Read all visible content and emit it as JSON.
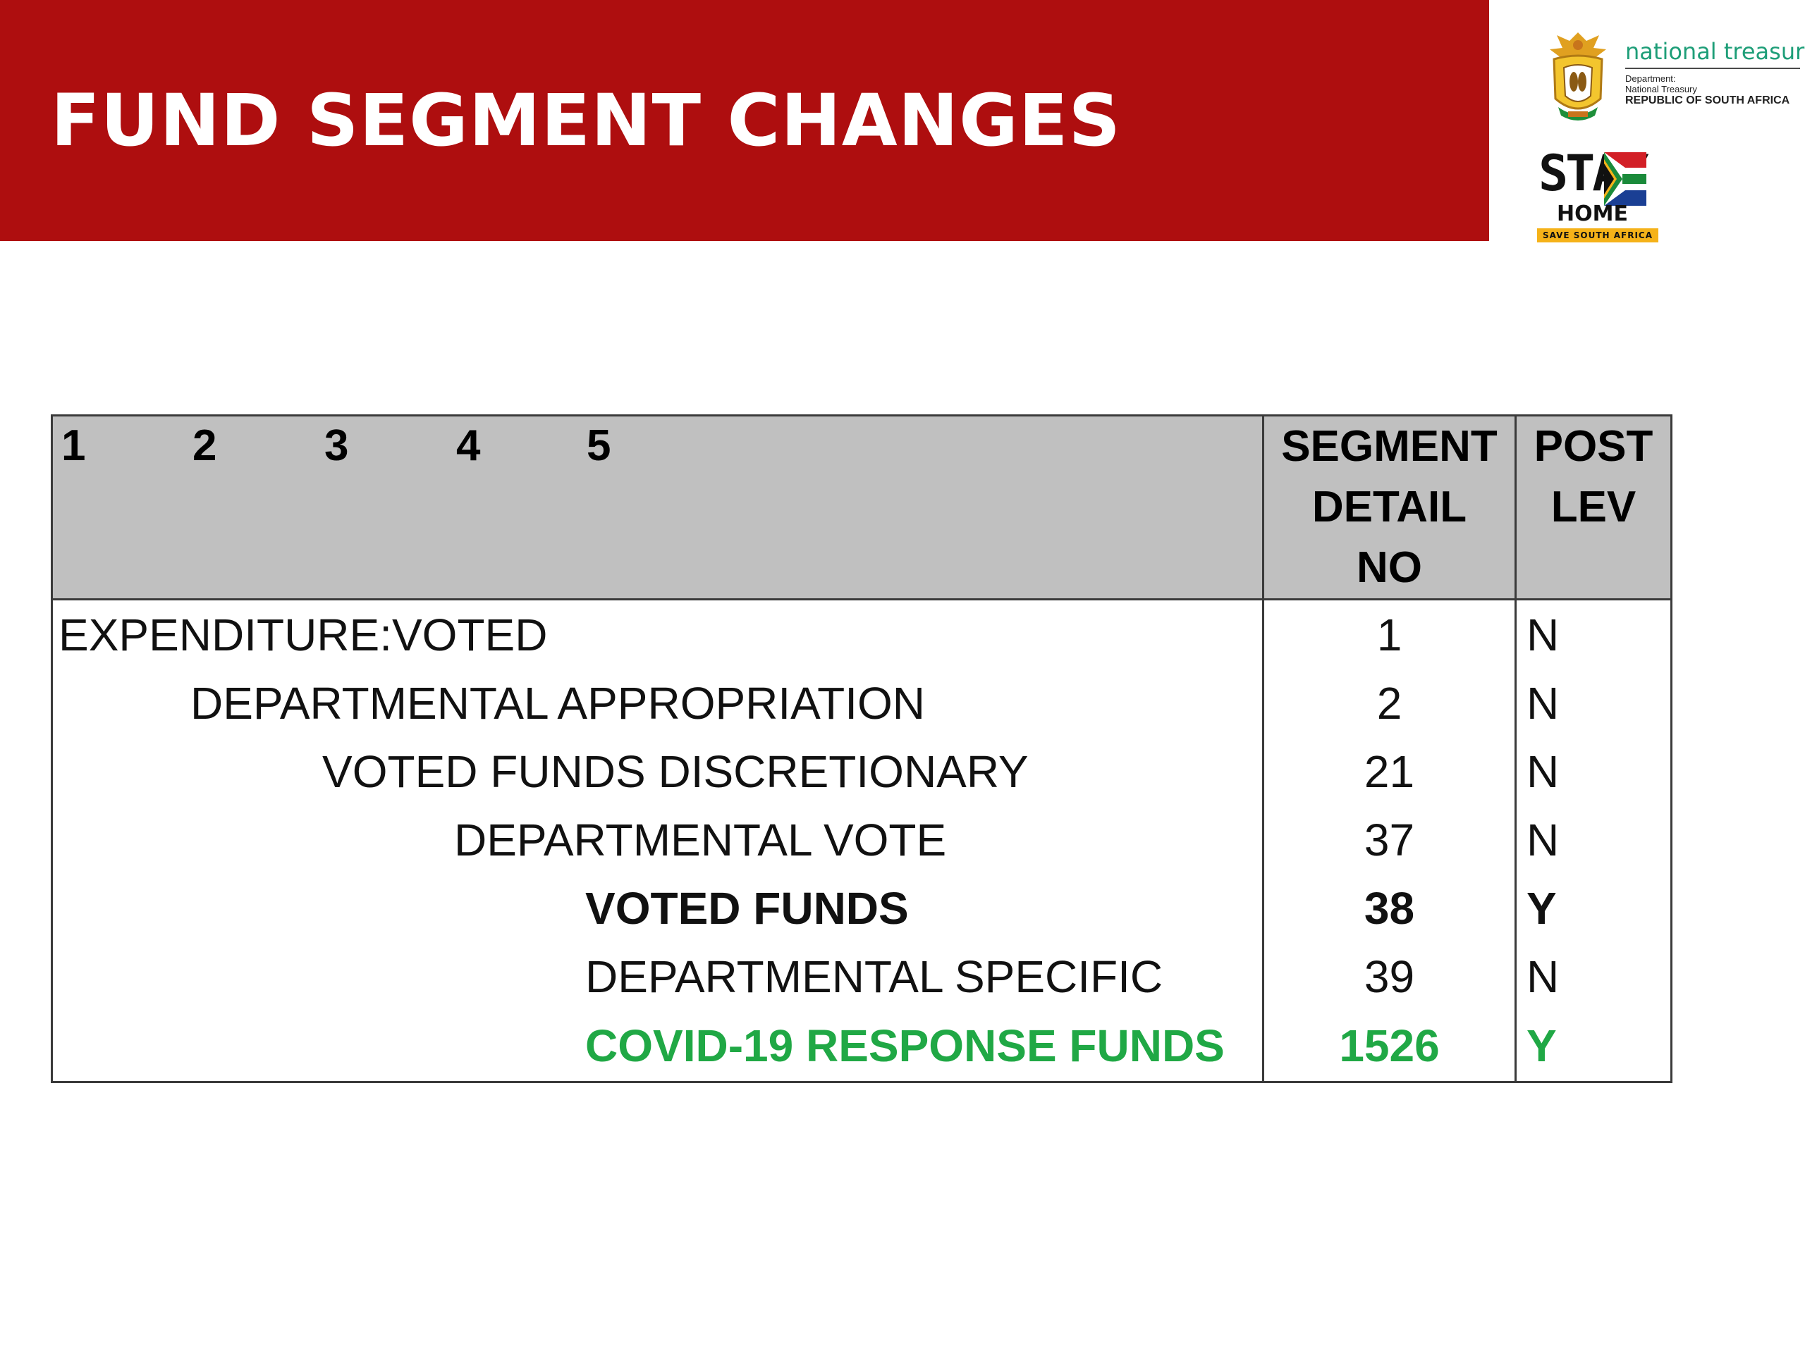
{
  "slide": {
    "title": "FUND SEGMENT CHANGES"
  },
  "logos": {
    "national_treasury": {
      "name": "national treasury",
      "line1": "Department:",
      "line2": "National Treasury",
      "line3": "REPUBLIC OF SOUTH AFRICA",
      "brand_color": "#1e9e78"
    },
    "stay_home": {
      "word1": "STAY",
      "word2": "HOME",
      "tagline": "SAVE SOUTH AFRICA"
    }
  },
  "table": {
    "level_headers": [
      "1",
      "2",
      "3",
      "4",
      "5"
    ],
    "segment_header": [
      "SEGMENT",
      "DETAIL",
      "NO"
    ],
    "post_header": [
      "POST",
      "LEV"
    ],
    "rows": [
      {
        "name": "EXPENDITURE:VOTED",
        "level": 1,
        "segment_no": "1",
        "post": "N",
        "style": "normal"
      },
      {
        "name": "DEPARTMENTAL APPROPRIATION",
        "level": 2,
        "segment_no": "2",
        "post": "N",
        "style": "normal"
      },
      {
        "name": "VOTED FUNDS DISCRETIONARY",
        "level": 3,
        "segment_no": "21",
        "post": "N",
        "style": "normal"
      },
      {
        "name": "DEPARTMENTAL VOTE",
        "level": 4,
        "segment_no": "37",
        "post": "N",
        "style": "normal"
      },
      {
        "name": "VOTED FUNDS",
        "level": 5,
        "segment_no": "38",
        "post": "Y",
        "style": "bold"
      },
      {
        "name": "DEPARTMENTAL SPECIFIC",
        "level": 5,
        "segment_no": "39",
        "post": "N",
        "style": "normal"
      },
      {
        "name": "COVID-19 RESPONSE FUNDS",
        "level": 5,
        "segment_no": "1526",
        "post": "Y",
        "style": "highlight"
      }
    ],
    "colors": {
      "header_bg": "#c0c0c0",
      "highlight_text": "#20a845",
      "title_band": "#ae0e0f"
    }
  }
}
